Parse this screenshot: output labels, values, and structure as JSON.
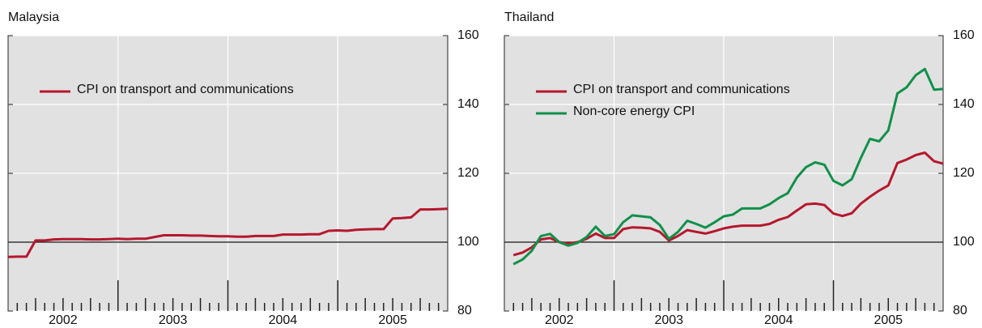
{
  "chart_data": [
    {
      "type": "line",
      "title": "Malaysia",
      "x": [
        2002.0,
        2002.083,
        2002.167,
        2002.25,
        2002.333,
        2002.417,
        2002.5,
        2002.583,
        2002.667,
        2002.75,
        2002.833,
        2002.917,
        2003.0,
        2003.083,
        2003.167,
        2003.25,
        2003.333,
        2003.417,
        2003.5,
        2003.583,
        2003.667,
        2003.75,
        2003.833,
        2003.917,
        2004.0,
        2004.083,
        2004.167,
        2004.25,
        2004.333,
        2004.417,
        2004.5,
        2004.583,
        2004.667,
        2004.75,
        2004.833,
        2004.917,
        2005.0,
        2005.083,
        2005.167,
        2005.25,
        2005.333,
        2005.417,
        2005.5,
        2005.583,
        2005.667,
        2005.75,
        2005.833,
        2005.917,
        2006.0
      ],
      "series": [
        {
          "name": "CPI on transport and communications",
          "color": "#b5182e",
          "values": [
            95.7,
            95.8,
            95.8,
            100.5,
            100.5,
            100.8,
            100.9,
            100.9,
            100.9,
            100.8,
            100.8,
            100.9,
            101.0,
            100.9,
            101.0,
            101.0,
            101.5,
            102.0,
            102.0,
            102.0,
            101.9,
            101.9,
            101.8,
            101.7,
            101.7,
            101.6,
            101.6,
            101.8,
            101.8,
            101.8,
            102.2,
            102.2,
            102.2,
            102.3,
            102.3,
            103.3,
            103.4,
            103.3,
            103.6,
            103.7,
            103.8,
            103.8,
            106.9,
            107.0,
            107.2,
            109.5,
            109.5,
            109.6,
            109.7
          ]
        }
      ],
      "xlim": [
        2002,
        2006
      ],
      "xticks": [
        {
          "value": 2002.5,
          "label": "2002"
        },
        {
          "value": 2003.5,
          "label": "2003"
        },
        {
          "value": 2004.5,
          "label": "2004"
        },
        {
          "value": 2005.5,
          "label": "2005"
        }
      ],
      "ylim": [
        80,
        160
      ],
      "yticks": [
        80,
        100,
        120,
        140,
        160
      ],
      "grid": true,
      "hline": 100
    },
    {
      "type": "line",
      "title": "Thailand",
      "x": [
        2002.083,
        2002.167,
        2002.25,
        2002.333,
        2002.417,
        2002.5,
        2002.583,
        2002.667,
        2002.75,
        2002.833,
        2002.917,
        2003.0,
        2003.083,
        2003.167,
        2003.25,
        2003.333,
        2003.417,
        2003.5,
        2003.583,
        2003.667,
        2003.75,
        2003.833,
        2003.917,
        2004.0,
        2004.083,
        2004.167,
        2004.25,
        2004.333,
        2004.417,
        2004.5,
        2004.583,
        2004.667,
        2004.75,
        2004.833,
        2004.917,
        2005.0,
        2005.083,
        2005.167,
        2005.25,
        2005.333,
        2005.417,
        2005.5,
        2005.583,
        2005.667,
        2005.75,
        2005.833,
        2005.917,
        2006.0
      ],
      "series": [
        {
          "name": "CPI on transport and communications",
          "color": "#b5182e",
          "values": [
            96.2,
            97.0,
            98.5,
            100.8,
            101.2,
            100.0,
            99.6,
            100.0,
            101.0,
            102.5,
            101.2,
            101.2,
            103.8,
            104.3,
            104.2,
            104.0,
            103.0,
            100.5,
            101.8,
            103.5,
            103.0,
            102.5,
            103.2,
            104.0,
            104.5,
            104.8,
            104.8,
            104.8,
            105.3,
            106.5,
            107.3,
            109.2,
            111.0,
            111.2,
            110.8,
            108.3,
            107.6,
            108.4,
            111.2,
            113.2,
            115.0,
            116.5,
            123.0,
            124.0,
            125.3,
            126.0,
            123.5,
            122.8
          ]
        },
        {
          "name": "Non-core energy CPI",
          "color": "#10904a",
          "values": [
            93.6,
            95.0,
            97.5,
            101.8,
            102.4,
            100.0,
            99.0,
            99.8,
            101.5,
            104.5,
            101.8,
            102.3,
            105.8,
            107.8,
            107.5,
            107.2,
            105.0,
            101.0,
            103.0,
            106.2,
            105.3,
            104.2,
            105.8,
            107.5,
            108.0,
            109.8,
            109.8,
            109.8,
            111.0,
            112.8,
            114.2,
            118.8,
            121.8,
            123.2,
            122.5,
            117.8,
            116.5,
            118.3,
            124.5,
            130.0,
            129.3,
            132.5,
            143.2,
            145.0,
            148.5,
            150.3,
            144.3,
            144.5
          ]
        }
      ],
      "xlim": [
        2002,
        2006
      ],
      "xticks": [
        {
          "value": 2002.5,
          "label": "2002"
        },
        {
          "value": 2003.5,
          "label": "2003"
        },
        {
          "value": 2004.5,
          "label": "2004"
        },
        {
          "value": 2005.5,
          "label": "2005"
        }
      ],
      "ylim": [
        80,
        160
      ],
      "yticks": [
        80,
        100,
        120,
        140,
        160
      ],
      "grid": true,
      "hline": 100
    }
  ]
}
